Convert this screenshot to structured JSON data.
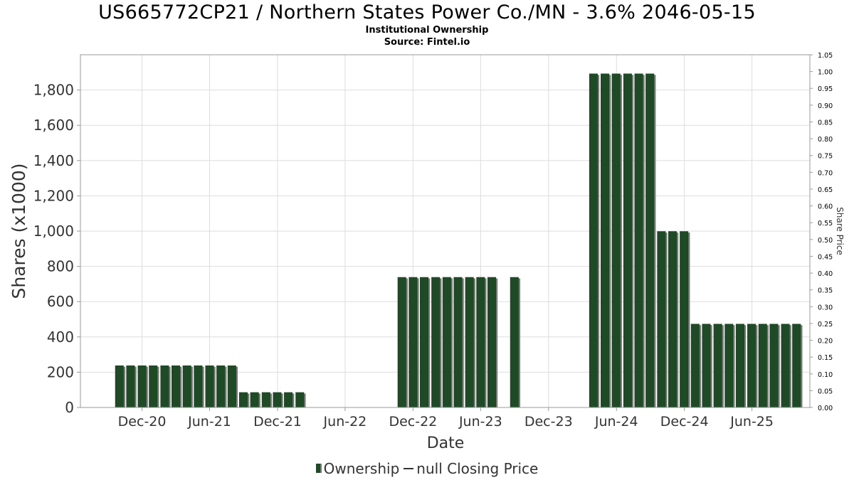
{
  "title": "US665772CP21 / Northern States Power Co./MN - 3.6% 2046-05-15",
  "subtitle_1": "Institutional Ownership",
  "subtitle_2": "Source: Fintel.io",
  "legend": {
    "ownership": "Ownership",
    "price": "null Closing Price"
  },
  "colors": {
    "bar": "#1f4a26",
    "bar_shadow": "#7a7a7a",
    "grid": "#dddddd",
    "axis_text": "#333333"
  },
  "chart_data": {
    "type": "bar",
    "title": "US665772CP21 / Northern States Power Co./MN - 3.6% 2046-05-15",
    "xlabel": "Date",
    "ylabel": "Shares (x1000)",
    "y2label": "Share Price",
    "grid": true,
    "legend_position": "bottom",
    "ylim": [
      0,
      2000
    ],
    "y_ticks": [
      0,
      200,
      400,
      600,
      800,
      1000,
      1200,
      1400,
      1600,
      1800
    ],
    "y_tick_labels": [
      "0",
      "200",
      "400",
      "600",
      "800",
      "1,000",
      "1,200",
      "1,400",
      "1,600",
      "1,800"
    ],
    "y2lim": [
      0,
      1.05
    ],
    "y2_ticks": [
      "0.00",
      "0.05",
      "0.10",
      "0.15",
      "0.20",
      "0.25",
      "0.30",
      "0.35",
      "0.40",
      "0.45",
      "0.50",
      "0.55",
      "0.60",
      "0.65",
      "0.70",
      "0.75",
      "0.80",
      "0.85",
      "0.90",
      "0.95",
      "1.00",
      "1.05"
    ],
    "xlim": [
      "2020-06-18",
      "2025-11-04"
    ],
    "x_ticks": [
      {
        "date": "2020-12-01",
        "label": "Dec-20"
      },
      {
        "date": "2021-06-01",
        "label": "Jun-21"
      },
      {
        "date": "2021-12-01",
        "label": "Dec-21"
      },
      {
        "date": "2022-06-01",
        "label": "Jun-22"
      },
      {
        "date": "2022-12-01",
        "label": "Dec-22"
      },
      {
        "date": "2023-06-01",
        "label": "Jun-23"
      },
      {
        "date": "2023-12-01",
        "label": "Dec-23"
      },
      {
        "date": "2024-06-01",
        "label": "Jun-24"
      },
      {
        "date": "2024-12-01",
        "label": "Dec-24"
      },
      {
        "date": "2025-06-01",
        "label": "Jun-25"
      }
    ],
    "series": [
      {
        "name": "Ownership",
        "x": [
          "2020-10-01",
          "2020-10-31",
          "2020-12-01",
          "2020-12-31",
          "2021-01-31",
          "2021-03-02",
          "2021-04-01",
          "2021-05-01",
          "2021-06-01",
          "2021-07-01",
          "2021-07-31",
          "2021-08-31",
          "2021-09-30",
          "2021-10-31",
          "2021-11-30",
          "2021-12-30",
          "2022-01-30",
          "2022-11-01",
          "2022-12-01",
          "2022-12-31",
          "2023-01-31",
          "2023-03-02",
          "2023-04-01",
          "2023-05-02",
          "2023-06-01",
          "2023-07-01",
          "2023-08-31",
          "2024-03-31",
          "2024-05-01",
          "2024-05-31",
          "2024-07-01",
          "2024-07-31",
          "2024-08-30",
          "2024-09-30",
          "2024-10-30",
          "2024-11-30",
          "2024-12-30",
          "2025-01-29",
          "2025-03-01",
          "2025-03-31",
          "2025-04-30",
          "2025-05-31",
          "2025-06-30",
          "2025-07-30",
          "2025-08-30",
          "2025-09-29"
        ],
        "values": [
          237,
          237,
          237,
          237,
          237,
          237,
          237,
          237,
          237,
          237,
          237,
          85,
          85,
          85,
          85,
          85,
          85,
          738,
          738,
          738,
          738,
          738,
          738,
          738,
          738,
          738,
          738,
          1892,
          1892,
          1892,
          1892,
          1892,
          1892,
          998,
          998,
          998,
          473,
          473,
          473,
          473,
          473,
          473,
          473,
          473,
          473,
          473
        ]
      }
    ]
  }
}
